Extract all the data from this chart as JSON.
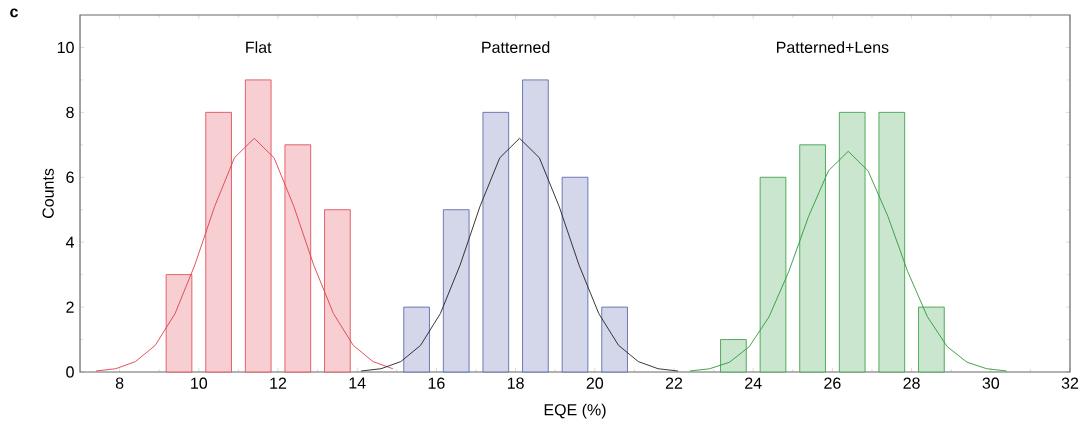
{
  "chart_data": {
    "type": "bar",
    "xlabel": "EQE (%)",
    "ylabel": "Counts",
    "xlim": [
      7,
      32
    ],
    "xticks": [
      8,
      10,
      12,
      14,
      16,
      18,
      20,
      22,
      24,
      26,
      28,
      30,
      32
    ],
    "ylim": [
      0,
      11
    ],
    "yticks": [
      0,
      2,
      4,
      6,
      8,
      10
    ],
    "grid": false,
    "annotations": [
      "c",
      "Flat",
      "Patterned",
      "Patterned+Lens"
    ],
    "series": [
      {
        "color": "#e0404a",
        "x": [
          9.5,
          10.5,
          11.5,
          12.5,
          13.5
        ],
        "values": [
          3,
          8,
          9,
          7,
          5
        ]
      },
      {
        "type": "line",
        "color": "#e0404a",
        "x": [
          7.4,
          7.9,
          8.4,
          8.9,
          9.4,
          9.9,
          10.4,
          10.9,
          11.4,
          11.9,
          12.4,
          12.9,
          13.4,
          13.9,
          14.4,
          14.9
        ],
        "values": [
          0.03,
          0.1,
          0.32,
          0.82,
          1.8,
          3.3,
          5.1,
          6.6,
          7.2,
          6.6,
          5.1,
          3.3,
          1.8,
          0.82,
          0.32,
          0.1
        ]
      },
      {
        "color": "#4f5fa8",
        "x": [
          15.5,
          16.5,
          17.5,
          18.5,
          19.5,
          20.5
        ],
        "values": [
          2,
          5,
          8,
          9,
          6,
          2
        ]
      },
      {
        "type": "line",
        "color": "#222222",
        "x": [
          14.1,
          14.6,
          15.1,
          15.6,
          16.1,
          16.6,
          17.1,
          17.6,
          18.1,
          18.6,
          19.1,
          19.6,
          20.1,
          20.6,
          21.1,
          21.6,
          22.1
        ],
        "values": [
          0.03,
          0.1,
          0.32,
          0.82,
          1.8,
          3.3,
          5.1,
          6.6,
          7.2,
          6.6,
          5.1,
          3.3,
          1.8,
          0.82,
          0.32,
          0.1,
          0.03
        ]
      },
      {
        "color": "#2e9a3a",
        "x": [
          23.5,
          24.5,
          25.5,
          26.5,
          27.5,
          28.5
        ],
        "values": [
          1,
          6,
          7,
          8,
          8,
          2
        ]
      },
      {
        "type": "line",
        "color": "#2e9a3a",
        "x": [
          22.4,
          22.9,
          23.4,
          23.9,
          24.4,
          24.9,
          25.4,
          25.9,
          26.4,
          26.9,
          27.4,
          27.9,
          28.4,
          28.9,
          29.4,
          29.9,
          30.4
        ],
        "values": [
          0.03,
          0.1,
          0.3,
          0.78,
          1.7,
          3.1,
          4.8,
          6.2,
          6.8,
          6.2,
          4.8,
          3.1,
          1.7,
          0.78,
          0.3,
          0.1,
          0.03
        ]
      }
    ]
  }
}
